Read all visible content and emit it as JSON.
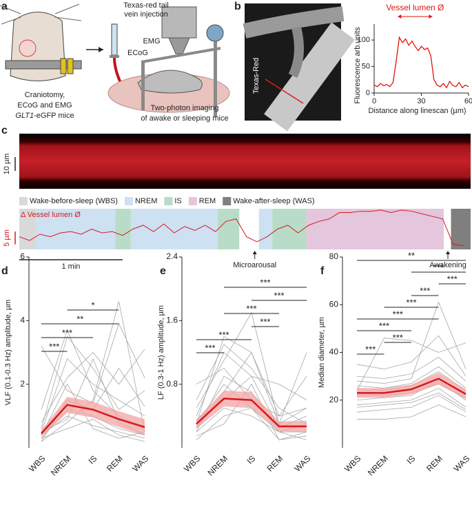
{
  "panel_labels": [
    "a",
    "b",
    "c",
    "d",
    "e",
    "f"
  ],
  "panel_a": {
    "injection": [
      "Texas-red tail",
      "vein injection"
    ],
    "emg": "EMG",
    "ecog": "ECoG",
    "left_caption": [
      "Craniotomy,",
      "ECoG and EMG"
    ],
    "gene": "GLT1",
    "gene_suffix": "-eGFP mice",
    "right_caption": [
      "Two-photon imaging",
      "of awake or sleeping mice"
    ]
  },
  "panel_b": {
    "image_label": "Texas-Red"
  },
  "panel_c": {
    "kymograph_scale": "10 µm"
  },
  "chart_data": [
    {
      "type": "line",
      "x_label": "Distance along linescan (µm)",
      "y_label": "Fluorescence arb.units",
      "annotation": {
        "text": "Vessel lumen Ø",
        "span": [
          15,
          37
        ]
      },
      "x": [
        0,
        2,
        4,
        6,
        8,
        10,
        12,
        14,
        16,
        18,
        20,
        22,
        24,
        26,
        28,
        30,
        32,
        34,
        36,
        38,
        40,
        42,
        44,
        46,
        48,
        50,
        52,
        54,
        56,
        58,
        60
      ],
      "series": [
        {
          "color": "#e3120b",
          "values": [
            15,
            12,
            18,
            14,
            16,
            12,
            20,
            60,
            105,
            95,
            102,
            90,
            98,
            88,
            80,
            88,
            82,
            85,
            70,
            25,
            15,
            12,
            18,
            10,
            22,
            14,
            12,
            20,
            10,
            15,
            12
          ]
        }
      ],
      "xlim": [
        0,
        60
      ],
      "xticks": [
        0,
        30,
        60
      ],
      "ylim": [
        0,
        130
      ],
      "yticks": [
        0,
        50,
        100
      ]
    },
    {
      "type": "line",
      "y_label": "Δ Vessel lumen Ø",
      "states": [
        {
          "name": "Wake-before-sleep (WBS)",
          "color": "#d9d9d9"
        },
        {
          "name": "NREM",
          "color": "#cde1f2"
        },
        {
          "name": "IS",
          "color": "#b9dcc8"
        },
        {
          "name": "REM",
          "color": "#e4c6dd"
        },
        {
          "name": "Wake-after-sleep (WAS)",
          "color": "#7f7f7f"
        }
      ],
      "segments": [
        {
          "state": 0,
          "start": 0,
          "end": 0.16
        },
        {
          "state": 1,
          "start": 0.16,
          "end": 0.93
        },
        {
          "state": 2,
          "start": 0.93,
          "end": 1.08
        },
        {
          "state": 1,
          "start": 1.08,
          "end": 1.92
        },
        {
          "state": 2,
          "start": 1.92,
          "end": 2.13
        },
        {
          "state": 1,
          "start": 2.32,
          "end": 2.45
        },
        {
          "state": 2,
          "start": 2.45,
          "end": 2.78
        },
        {
          "state": 3,
          "start": 2.78,
          "end": 4.11
        },
        {
          "state": 4,
          "start": 4.18,
          "end": 4.37
        }
      ],
      "x": [
        0,
        0.1,
        0.2,
        0.3,
        0.4,
        0.5,
        0.6,
        0.7,
        0.8,
        0.9,
        1,
        1.1,
        1.2,
        1.3,
        1.4,
        1.5,
        1.6,
        1.7,
        1.8,
        1.9,
        2,
        2.1,
        2.2,
        2.3,
        2.4,
        2.5,
        2.6,
        2.7,
        2.8,
        2.9,
        3,
        3.1,
        3.2,
        3.3,
        3.4,
        3.5,
        3.6,
        3.7,
        3.8,
        3.9,
        4,
        4.1,
        4.2,
        4.3
      ],
      "series": [
        {
          "color": "#d7191c",
          "values": [
            3,
            1.5,
            4,
            3,
            4.5,
            5,
            4,
            6,
            4.5,
            5,
            3.5,
            6,
            7.5,
            5,
            8,
            4.5,
            7,
            5.5,
            7.5,
            5,
            9,
            10,
            3,
            1,
            3,
            6,
            7.5,
            4.5,
            7.5,
            9,
            10,
            12.5,
            12.5,
            13,
            13,
            13.5,
            12.5,
            13.5,
            13,
            12,
            11,
            10,
            0,
            -0.5
          ]
        }
      ],
      "xlim": [
        0,
        4.37
      ],
      "ylim": [
        -2,
        14
      ],
      "scale_bars": {
        "x": {
          "value": 1,
          "label": "1 min"
        },
        "y": {
          "value": 5,
          "label": "5 µm"
        }
      },
      "annotations": [
        {
          "text": "Microarousal",
          "x": 2.28
        },
        {
          "text": "Awakening",
          "x": 4.15
        }
      ]
    },
    {
      "type": "line",
      "y_label": "VLF (0.1-0.3 Hz) amplitude, µm",
      "categories": [
        "WBS",
        "NREM",
        "IS",
        "REM",
        "WAS"
      ],
      "individual": {
        "color": "#a6a6a6",
        "lines": [
          [
            0.3,
            1.2,
            1.0,
            0.6,
            0.4
          ],
          [
            0.5,
            2.8,
            2.0,
            1.5,
            1.0
          ],
          [
            0.2,
            0.8,
            1.5,
            4.6,
            0.5
          ],
          [
            0.6,
            3.5,
            2.5,
            1.2,
            1.8
          ],
          [
            0.4,
            1.0,
            0.7,
            0.5,
            0.3
          ],
          [
            0.8,
            2.2,
            3.0,
            2.0,
            3.1
          ],
          [
            0.3,
            0.6,
            0.9,
            0.4,
            0.2
          ],
          [
            1.2,
            3.7,
            1.8,
            1.0,
            0.6
          ],
          [
            0.2,
            1.5,
            1.2,
            2.5,
            1.3
          ],
          [
            0.5,
            0.9,
            2.8,
            0.8,
            0.4
          ],
          [
            3.2,
            1.8,
            1.4,
            3.9,
            2.2
          ],
          [
            0.4,
            2.0,
            0.6,
            0.3,
            0.5
          ]
        ]
      },
      "mean": {
        "color": "#d7191c",
        "values": [
          0.45,
          1.35,
          1.2,
          0.9,
          0.65
        ]
      },
      "band": {
        "color": "#f2a3a3",
        "low": [
          0.35,
          1.1,
          0.95,
          0.65,
          0.4
        ],
        "high": [
          0.55,
          1.6,
          1.45,
          1.15,
          0.9
        ]
      },
      "ylim": [
        0,
        6
      ],
      "yticks": [
        2,
        4,
        6
      ],
      "comparisons": [
        {
          "from": 0,
          "to": 1,
          "label": "***"
        },
        {
          "from": 0,
          "to": 2,
          "label": "***"
        },
        {
          "from": 0,
          "to": 3,
          "label": "**"
        },
        {
          "from": 1,
          "to": 3,
          "label": "*"
        }
      ]
    },
    {
      "type": "line",
      "y_label": "LF (0.3-1 Hz) amplitude, µm",
      "categories": [
        "WBS",
        "NREM",
        "IS",
        "REM",
        "WAS"
      ],
      "individual": {
        "color": "#a6a6a6",
        "lines": [
          [
            0.2,
            0.9,
            0.7,
            0.2,
            0.3
          ],
          [
            0.3,
            1.4,
            1.2,
            0.4,
            0.5
          ],
          [
            0.1,
            0.4,
            0.5,
            0.1,
            0.15
          ],
          [
            0.5,
            1.1,
            1.7,
            0.3,
            1.2
          ],
          [
            0.2,
            0.5,
            0.4,
            0.2,
            0.2
          ],
          [
            0.4,
            1.2,
            0.9,
            0.8,
            0.6
          ],
          [
            0.15,
            0.3,
            0.8,
            0.1,
            0.2
          ],
          [
            0.6,
            1.3,
            1.0,
            0.5,
            0.3
          ],
          [
            0.25,
            0.7,
            1.2,
            0.3,
            0.5
          ],
          [
            0.8,
            1.0,
            0.6,
            0.4,
            0.9
          ],
          [
            0.3,
            0.8,
            0.5,
            0.2,
            0.1
          ],
          [
            0.35,
            0.6,
            0.9,
            0.25,
            0.4
          ]
        ]
      },
      "mean": {
        "color": "#d7191c",
        "values": [
          0.3,
          0.62,
          0.6,
          0.27,
          0.27
        ]
      },
      "band": {
        "color": "#f2a3a3",
        "low": [
          0.24,
          0.52,
          0.5,
          0.21,
          0.2
        ],
        "high": [
          0.36,
          0.72,
          0.7,
          0.33,
          0.34
        ]
      },
      "ylim": [
        0,
        2.4
      ],
      "yticks": [
        0.8,
        1.6,
        2.4
      ],
      "comparisons": [
        {
          "from": 0,
          "to": 1,
          "label": "***"
        },
        {
          "from": 0,
          "to": 2,
          "label": "***"
        },
        {
          "from": 2,
          "to": 3,
          "label": "***"
        },
        {
          "from": 1,
          "to": 3,
          "label": "***"
        },
        {
          "from": 2,
          "to": 4,
          "label": "***"
        },
        {
          "from": 1,
          "to": 4,
          "label": "***"
        }
      ]
    },
    {
      "type": "line",
      "y_label": "Median diameter, µm",
      "categories": [
        "WBS",
        "NREM",
        "IS",
        "REM",
        "WAS"
      ],
      "individual": {
        "color": "#a6a6a6",
        "lines": [
          [
            20,
            21,
            22,
            28,
            20
          ],
          [
            25,
            24,
            26,
            32,
            24
          ],
          [
            15,
            16,
            17,
            22,
            15
          ],
          [
            30,
            29,
            31,
            38,
            28
          ],
          [
            18,
            19,
            20,
            25,
            17
          ],
          [
            35,
            33,
            36,
            47,
            30
          ],
          [
            12,
            12,
            13,
            18,
            13
          ],
          [
            28,
            27,
            29,
            61,
            33
          ],
          [
            22,
            22,
            23,
            27,
            21
          ],
          [
            24,
            46,
            45,
            40,
            44
          ],
          [
            17,
            18,
            19,
            23,
            16
          ],
          [
            26,
            25,
            27,
            34,
            25
          ]
        ]
      },
      "mean": {
        "color": "#d7191c",
        "values": [
          23,
          23,
          24.5,
          29,
          22.5
        ]
      },
      "band": {
        "color": "#f2a3a3",
        "low": [
          21,
          21,
          22.5,
          26.5,
          20.5
        ],
        "high": [
          25,
          25,
          26.5,
          31.5,
          24.5
        ]
      },
      "ylim": [
        0,
        80
      ],
      "yticks": [
        20,
        40,
        60,
        80
      ],
      "comparisons": [
        {
          "from": 0,
          "to": 1,
          "label": "***"
        },
        {
          "from": 1,
          "to": 2,
          "label": "***"
        },
        {
          "from": 0,
          "to": 2,
          "label": "***"
        },
        {
          "from": 0,
          "to": 3,
          "label": "***"
        },
        {
          "from": 1,
          "to": 3,
          "label": "***"
        },
        {
          "from": 2,
          "to": 3,
          "label": "***"
        },
        {
          "from": 3,
          "to": 4,
          "label": "***"
        },
        {
          "from": 2,
          "to": 4,
          "label": "***"
        },
        {
          "from": 0,
          "to": 4,
          "label": "**"
        }
      ]
    }
  ]
}
